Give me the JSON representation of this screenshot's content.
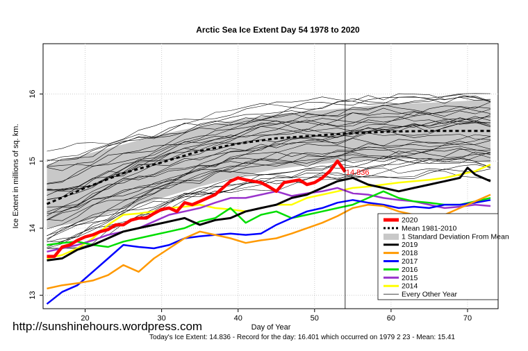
{
  "chart_data": {
    "type": "line",
    "title": "Arctic Sea Ice Extent Day 54 1978 to 2020",
    "xlabel": "Day of Year",
    "ylabel": "Ice Extent in millions of sq. km.",
    "xlim": [
      14.5,
      74
    ],
    "ylim": [
      12.8,
      16.75
    ],
    "xticks": [
      20,
      30,
      40,
      50,
      60,
      70
    ],
    "yticks": [
      13,
      14,
      15,
      16
    ],
    "current_day": 54,
    "today_label": "14.836",
    "grid": true,
    "legend_position": "bottom-right",
    "legend": [
      {
        "label": "2020",
        "color": "#ff0000",
        "style": "thick"
      },
      {
        "label": "Mean 1981-2010",
        "color": "#000000",
        "style": "dotted"
      },
      {
        "label": "1 Standard Deviation From Mean",
        "color": "#c8c8c8",
        "style": "band"
      },
      {
        "label": "2019",
        "color": "#000000",
        "style": "line"
      },
      {
        "label": "2018",
        "color": "#ff9900",
        "style": "line"
      },
      {
        "label": "2017",
        "color": "#0000ff",
        "style": "line"
      },
      {
        "label": "2016",
        "color": "#00dd00",
        "style": "line"
      },
      {
        "label": "2015",
        "color": "#9933cc",
        "style": "line"
      },
      {
        "label": "2014",
        "color": "#ffff00",
        "style": "line"
      },
      {
        "label": "Every Other Year",
        "color": "#000000",
        "style": "thin"
      }
    ],
    "mean": {
      "x": [
        15,
        20,
        25,
        30,
        35,
        40,
        45,
        50,
        54,
        60,
        65,
        70,
        73
      ],
      "y": [
        14.36,
        14.6,
        14.82,
        14.98,
        15.15,
        15.26,
        15.34,
        15.38,
        15.41,
        15.44,
        15.45,
        15.45,
        15.45
      ]
    },
    "sd_band": {
      "x": [
        15,
        20,
        25,
        30,
        35,
        40,
        45,
        50,
        55,
        60,
        65,
        70,
        73
      ],
      "upper": [
        14.95,
        15.1,
        15.25,
        15.4,
        15.52,
        15.62,
        15.7,
        15.75,
        15.8,
        15.85,
        15.87,
        15.9,
        15.93
      ],
      "lower": [
        14.0,
        14.1,
        14.28,
        14.45,
        14.62,
        14.77,
        14.88,
        14.95,
        15.0,
        15.02,
        15.04,
        15.0,
        14.98
      ]
    },
    "series": [
      {
        "name": "2020",
        "color": "#ff0000",
        "width": 4.5,
        "x": [
          15,
          16,
          17,
          18,
          19,
          20,
          21,
          22,
          23,
          24,
          25,
          26,
          27,
          28,
          29,
          30,
          31,
          32,
          33,
          34,
          35,
          36,
          37,
          38,
          39,
          40,
          41,
          42,
          43,
          44,
          45,
          46,
          47,
          48,
          49,
          50,
          51,
          52,
          53,
          54
        ],
        "y": [
          13.58,
          13.58,
          13.72,
          13.75,
          13.82,
          13.87,
          13.9,
          13.95,
          13.98,
          14.05,
          14.05,
          14.12,
          14.15,
          14.15,
          14.22,
          14.28,
          14.3,
          14.25,
          14.38,
          14.35,
          14.4,
          14.45,
          14.5,
          14.6,
          14.7,
          14.75,
          14.72,
          14.7,
          14.68,
          14.62,
          14.55,
          14.68,
          14.7,
          14.72,
          14.65,
          14.68,
          14.75,
          14.85,
          15.0,
          14.84
        ]
      },
      {
        "name": "2019",
        "color": "#000000",
        "width": 3,
        "x": [
          15,
          17,
          19,
          21,
          23,
          25,
          27,
          29,
          31,
          33,
          35,
          37,
          39,
          41,
          43,
          45,
          47,
          49,
          51,
          53,
          55,
          57,
          59,
          61,
          63,
          65,
          67,
          69,
          70,
          71,
          73
        ],
        "y": [
          13.52,
          13.55,
          13.68,
          13.75,
          13.85,
          13.95,
          14.0,
          14.05,
          14.1,
          14.15,
          14.05,
          14.12,
          14.15,
          14.25,
          14.3,
          14.35,
          14.45,
          14.5,
          14.6,
          14.7,
          14.75,
          14.65,
          14.6,
          14.55,
          14.6,
          14.65,
          14.7,
          14.75,
          14.9,
          14.8,
          14.7
        ]
      },
      {
        "name": "2018",
        "color": "#ff9900",
        "width": 2.5,
        "x": [
          15,
          17,
          19,
          21,
          23,
          25,
          27,
          29,
          31,
          33,
          35,
          37,
          39,
          41,
          43,
          45,
          47,
          49,
          51,
          53,
          55,
          57,
          59,
          61,
          63,
          65,
          67,
          69,
          71,
          73
        ],
        "y": [
          13.1,
          13.15,
          13.18,
          13.22,
          13.3,
          13.45,
          13.35,
          13.55,
          13.7,
          13.85,
          13.95,
          13.9,
          13.85,
          13.78,
          13.82,
          13.85,
          13.92,
          14.0,
          14.08,
          14.18,
          14.3,
          14.35,
          14.33,
          14.25,
          14.2,
          14.15,
          14.2,
          14.3,
          14.4,
          14.5
        ]
      },
      {
        "name": "2017",
        "color": "#0000ff",
        "width": 2.5,
        "x": [
          15,
          17,
          19,
          21,
          23,
          25,
          27,
          29,
          31,
          33,
          35,
          37,
          39,
          41,
          43,
          45,
          47,
          49,
          51,
          53,
          55,
          57,
          59,
          61,
          63,
          65,
          67,
          69,
          71,
          73
        ],
        "y": [
          12.87,
          13.05,
          13.15,
          13.35,
          13.55,
          13.75,
          13.72,
          13.7,
          13.75,
          13.85,
          13.88,
          13.9,
          13.92,
          13.9,
          13.92,
          14.05,
          14.15,
          14.25,
          14.3,
          14.38,
          14.42,
          14.38,
          14.35,
          14.3,
          14.32,
          14.3,
          14.35,
          14.35,
          14.38,
          14.42
        ]
      },
      {
        "name": "2016",
        "color": "#00dd00",
        "width": 2.5,
        "x": [
          15,
          17,
          19,
          21,
          23,
          25,
          27,
          29,
          31,
          33,
          35,
          37,
          39,
          41,
          43,
          45,
          47,
          49,
          51,
          53,
          55,
          57,
          59,
          61,
          63,
          65,
          67,
          69,
          71,
          73
        ],
        "y": [
          13.75,
          13.78,
          13.8,
          13.75,
          13.72,
          13.8,
          13.85,
          13.9,
          13.95,
          14.0,
          14.1,
          14.15,
          14.3,
          14.08,
          14.2,
          14.25,
          14.15,
          14.2,
          14.25,
          14.3,
          14.35,
          14.45,
          14.55,
          14.45,
          14.4,
          14.38,
          14.35,
          14.35,
          14.4,
          14.45
        ]
      },
      {
        "name": "2015",
        "color": "#9933cc",
        "width": 2.5,
        "x": [
          15,
          17,
          19,
          21,
          23,
          25,
          27,
          29,
          31,
          33,
          35,
          37,
          39,
          41,
          43,
          45,
          47,
          49,
          51,
          53,
          55,
          57,
          59,
          61,
          63,
          65,
          67,
          69,
          71,
          73
        ],
        "y": [
          13.65,
          13.7,
          13.75,
          13.82,
          13.9,
          13.95,
          14.0,
          14.1,
          14.2,
          14.25,
          14.3,
          14.38,
          14.45,
          14.45,
          14.5,
          14.55,
          14.48,
          14.52,
          14.55,
          14.6,
          14.52,
          14.5,
          14.45,
          14.42,
          14.4,
          14.35,
          14.3,
          14.32,
          14.35,
          14.33
        ]
      },
      {
        "name": "2014",
        "color": "#ffff00",
        "width": 2.5,
        "x": [
          15,
          17,
          19,
          21,
          23,
          25,
          27,
          29,
          31,
          33,
          35,
          37,
          39,
          41,
          43,
          45,
          47,
          49,
          51,
          53,
          55,
          57,
          59,
          61,
          63,
          65,
          67,
          69,
          71,
          73
        ],
        "y": [
          13.55,
          13.6,
          13.7,
          13.85,
          14.05,
          14.2,
          14.22,
          14.25,
          14.3,
          14.32,
          14.35,
          14.3,
          14.28,
          14.25,
          14.3,
          14.35,
          14.35,
          14.45,
          14.5,
          14.55,
          14.6,
          14.62,
          14.65,
          14.68,
          14.7,
          14.72,
          14.75,
          14.8,
          14.85,
          14.95
        ]
      }
    ]
  },
  "watermark": "http://sunshinehours.wordpress.com",
  "footer": "Today's Ice Extent: 14.836  - Record for the day: 16.401 which occurred on 1979 2 23  - Mean: 15.41"
}
